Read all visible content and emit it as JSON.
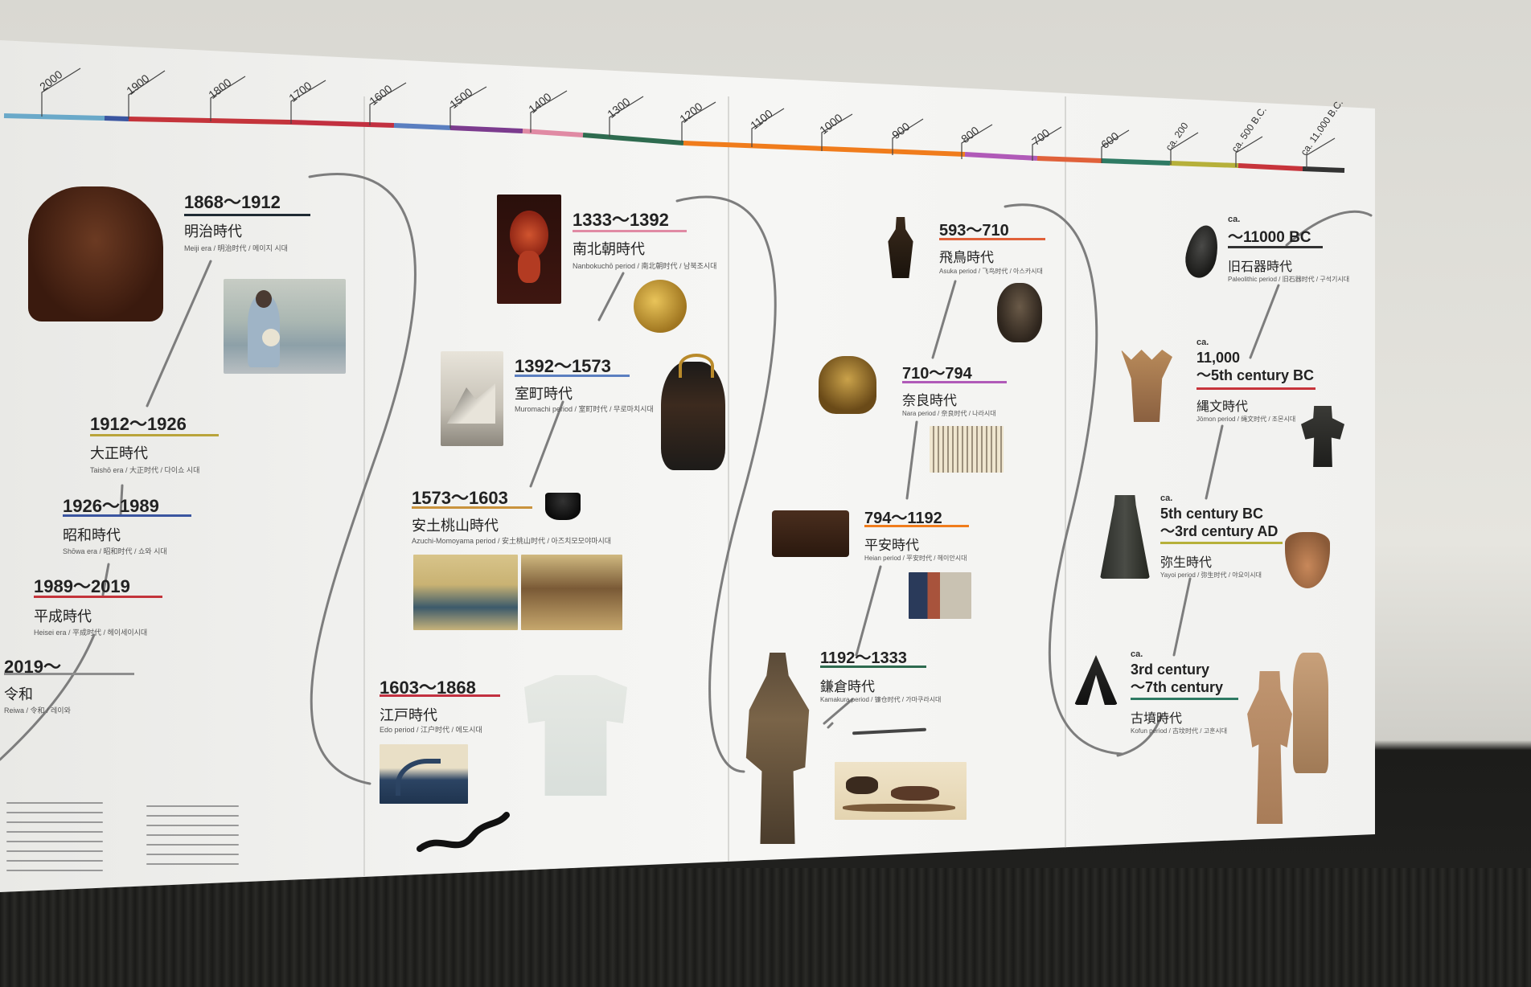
{
  "timeline_ticks": [
    "2000",
    "1900",
    "1800",
    "1700",
    "1600",
    "1500",
    "1400",
    "1300",
    "1200",
    "1100",
    "1000",
    "900",
    "800",
    "700",
    "600",
    "ca. 200",
    "ca. 500 B.C.",
    "ca. 11,000 B.C."
  ],
  "eras": [
    {
      "id": "meiji",
      "years": "1868～1912",
      "name": "明治時代",
      "sub": "Meiji era / 明治时代 / 메이지 시대",
      "color": "#1f2a33"
    },
    {
      "id": "taisho",
      "years": "1912～1926",
      "name": "大正時代",
      "sub": "Taishō era / 大正时代 / 다이쇼 시대",
      "color": "#b9a43a"
    },
    {
      "id": "showa",
      "years": "1926～1989",
      "name": "昭和時代",
      "sub": "Shōwa era / 昭和时代 / 쇼와 시대",
      "color": "#3a55a0"
    },
    {
      "id": "heisei",
      "years": "1989～2019",
      "name": "平成時代",
      "sub": "Heisei era / 平成时代 / 헤이세이시대",
      "color": "#c4343b"
    },
    {
      "id": "reiwa",
      "years": "2019～",
      "name": "令和",
      "sub": "Reiwa / 令和 / 레이와",
      "color": "#8e8e8e"
    },
    {
      "id": "nanbokucho",
      "years": "1333～1392",
      "name": "南北朝時代",
      "sub": "Nanbokuchō period / 南北朝时代 / 남북조시대",
      "color": "#e08aa4"
    },
    {
      "id": "muromachi",
      "years": "1392～1573",
      "name": "室町時代",
      "sub": "Muromachi period / 室町时代 / 무로마치시대",
      "color": "#5b7fc0"
    },
    {
      "id": "azuchi",
      "years": "1573～1603",
      "name": "安土桃山時代",
      "sub": "Azuchi-Momoyama period / 安土桃山时代 / 아즈치모모야마시대",
      "color": "#c9933d"
    },
    {
      "id": "edo",
      "years": "1603～1868",
      "name": "江戸時代",
      "sub": "Edo period / 江户时代 / 에도시대",
      "color": "#c23040"
    },
    {
      "id": "asuka",
      "years": "593～710",
      "name": "飛鳥時代",
      "sub": "Asuka period / 飞鸟时代 / 아스카시대",
      "color": "#e0613a"
    },
    {
      "id": "nara",
      "years": "710～794",
      "name": "奈良時代",
      "sub": "Nara period / 奈良时代 / 나라시대",
      "color": "#b05ab8"
    },
    {
      "id": "heian",
      "years": "794～1192",
      "name": "平安時代",
      "sub": "Heian period / 平安时代 / 헤이안시대",
      "color": "#f07c1c"
    },
    {
      "id": "kamakura",
      "years": "1192～1333",
      "name": "鎌倉時代",
      "sub": "Kamakura period / 镰仓时代 / 가마쿠라시대",
      "color": "#2e6b4f"
    },
    {
      "id": "paleolithic",
      "ca": "ca.",
      "years": "～11000 BC",
      "name": "旧石器時代",
      "sub": "Paleolithic period / 旧石器时代 / 구석기시대",
      "color": "#333333"
    },
    {
      "id": "jomon",
      "ca": "ca.",
      "years": "11,000\n～5th century BC",
      "name": "縄文時代",
      "sub": "Jōmon period / 绳文时代 / 조몬시대",
      "color": "#c7343b"
    },
    {
      "id": "yayoi",
      "ca": "ca.",
      "years": "5th century BC\n～3rd century AD",
      "name": "弥生時代",
      "sub": "Yayoi period / 弥生时代 / 야요이시대",
      "color": "#b6b03a"
    },
    {
      "id": "kofun",
      "ca": "ca.",
      "years": "3rd century\n～7th century",
      "name": "古墳時代",
      "sub": "Kofun period / 古坟时代 / 고훈시대",
      "color": "#2e7a63"
    }
  ],
  "colors": {
    "accent_orange": "#f07c1c",
    "line_gray": "#8a8a8a"
  }
}
